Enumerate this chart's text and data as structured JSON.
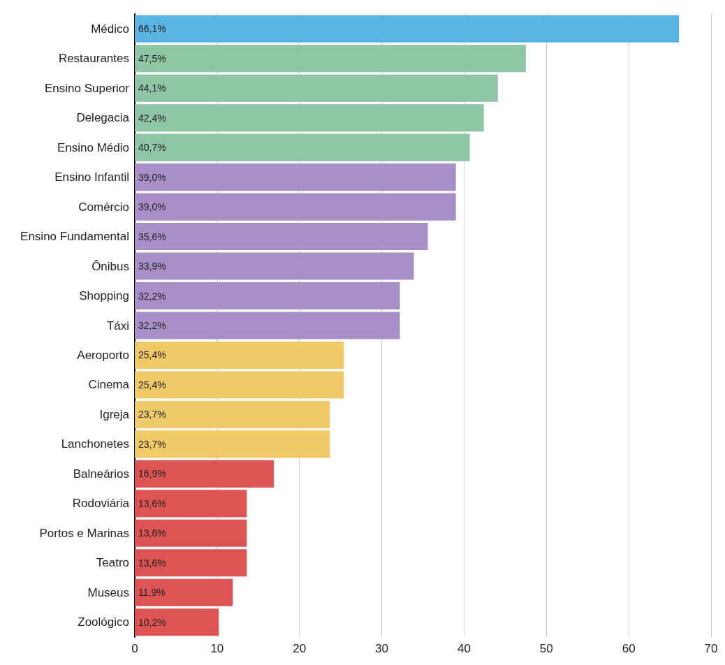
{
  "chart_data": {
    "type": "bar",
    "orientation": "horizontal",
    "categories": [
      "Médico",
      "Restaurantes",
      "Ensino Superior",
      "Delegacia",
      "Ensino Médio",
      "Ensino Infantil",
      "Comércio",
      "Ensino Fundamental",
      "Ônibus",
      "Shopping",
      "Táxi",
      "Aeroporto",
      "Cinema",
      "Igreja",
      "Lanchonetes",
      "Balneários",
      "Rodoviária",
      "Portos e Marinas",
      "Teatro",
      "Museus",
      "Zoológico"
    ],
    "values": [
      66.1,
      47.5,
      44.1,
      42.4,
      40.7,
      39.0,
      39.0,
      35.6,
      33.9,
      32.2,
      32.2,
      25.4,
      25.4,
      23.7,
      23.7,
      16.9,
      13.6,
      13.6,
      13.6,
      11.9,
      10.2
    ],
    "value_labels": [
      "66,1%",
      "47,5%",
      "44,1%",
      "42,4%",
      "40,7%",
      "39,0%",
      "39,0%",
      "35,6%",
      "33,9%",
      "32,2%",
      "32,2%",
      "25,4%",
      "25,4%",
      "23,7%",
      "23,7%",
      "16,9%",
      "13,6%",
      "13,6%",
      "13,6%",
      "11,9%",
      "10,2%"
    ],
    "colors": [
      "#5ab4e5",
      "#8dc5a5",
      "#8dc5a5",
      "#8dc5a5",
      "#8dc5a5",
      "#a98fc8",
      "#a98fc8",
      "#a98fc8",
      "#a98fc8",
      "#a98fc8",
      "#a98fc8",
      "#f0ca66",
      "#f0ca66",
      "#f0ca66",
      "#f0ca66",
      "#de5454",
      "#de5454",
      "#de5454",
      "#de5454",
      "#de5454",
      "#de5454"
    ],
    "xlim": [
      0,
      70
    ],
    "xticks": [
      0,
      10,
      20,
      30,
      40,
      50,
      60,
      70
    ],
    "grid": "x"
  }
}
